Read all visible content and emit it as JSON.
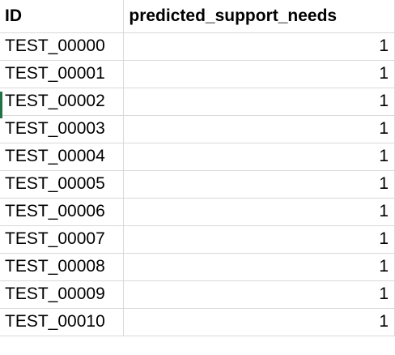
{
  "header": {
    "col_a": "ID",
    "col_b": "predicted_support_needs"
  },
  "rows": [
    {
      "id": "TEST_00000",
      "value": "1"
    },
    {
      "id": "TEST_00001",
      "value": "1"
    },
    {
      "id": "TEST_00002",
      "value": "1"
    },
    {
      "id": "TEST_00003",
      "value": "1"
    },
    {
      "id": "TEST_00004",
      "value": "1"
    },
    {
      "id": "TEST_00005",
      "value": "1"
    },
    {
      "id": "TEST_00006",
      "value": "1"
    },
    {
      "id": "TEST_00007",
      "value": "1"
    },
    {
      "id": "TEST_00008",
      "value": "1"
    },
    {
      "id": "TEST_00009",
      "value": "1"
    },
    {
      "id": "TEST_00010",
      "value": "1"
    }
  ],
  "colors": {
    "gridline": "#d9d9d9",
    "selection_accent": "#217346"
  }
}
